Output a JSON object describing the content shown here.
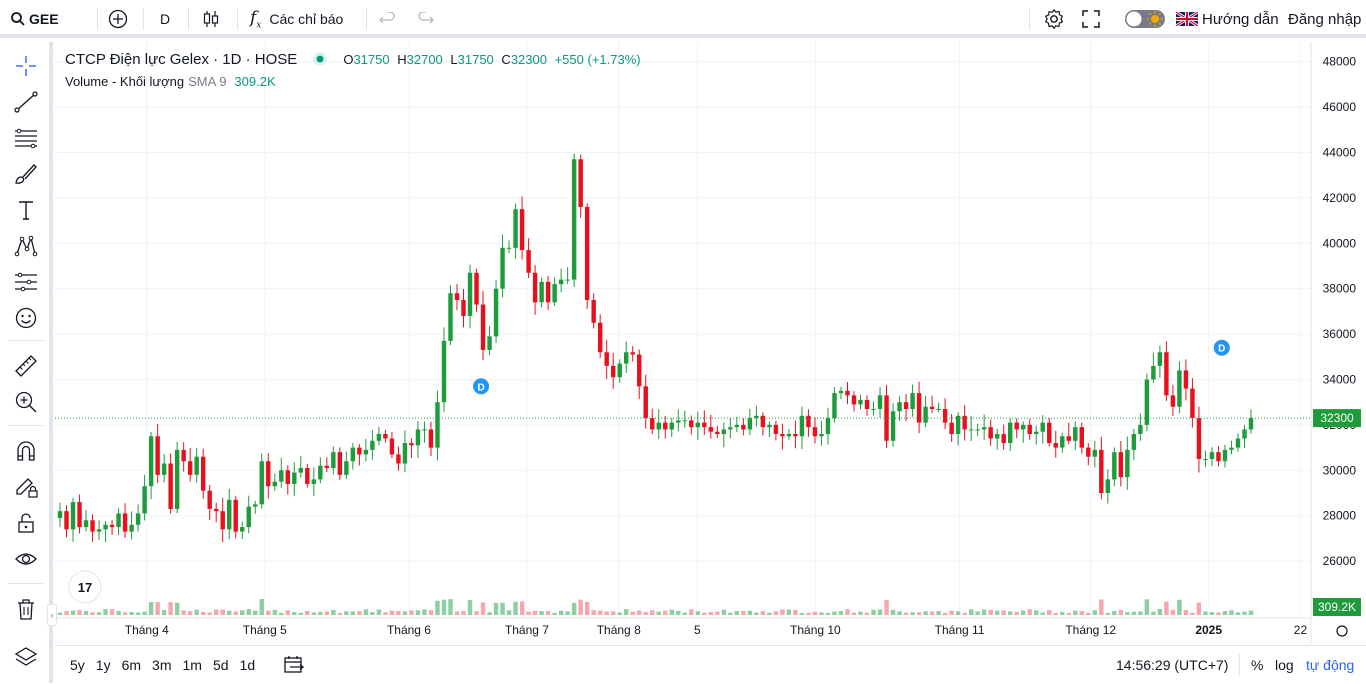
{
  "topbar": {
    "symbol": "GEE",
    "interval": "D",
    "indicators_label": "Các chỉ báo",
    "guide_label": "Hướng dẫn",
    "login_label": "Đăng nhập"
  },
  "legend": {
    "title": "CTCP Điện lực Gelex · 1D · HOSE",
    "open_label": "O",
    "open": "31750",
    "high_label": "H",
    "high": "32700",
    "low_label": "L",
    "low": "31750",
    "close_label": "C",
    "close": "32300",
    "change": "+550 (+1.73%)",
    "volume_label": "Volume - Khối lượng",
    "sma_label": "SMA 9",
    "volume_value": "309.2K"
  },
  "price_tag": "32300",
  "volume_tag": "309.2K",
  "ranges": [
    "5y",
    "1y",
    "6m",
    "3m",
    "1m",
    "5d",
    "1d"
  ],
  "bottombar": {
    "clock": "14:56:29 (UTC+7)",
    "percent": "%",
    "log": "log",
    "auto": "tự động"
  },
  "colors": {
    "up": "#089981",
    "down": "#f23645",
    "accent": "#2962ff",
    "up_bar": "#1e9c3c",
    "down_bar": "#e8101e"
  },
  "chart_data": {
    "type": "candlestick",
    "y_ticks": [
      26000,
      28000,
      30000,
      32000,
      34000,
      36000,
      38000,
      40000,
      42000,
      44000,
      46000,
      48000
    ],
    "ylim": [
      24200,
      48600
    ],
    "x_labels": [
      "Tháng 4",
      "Tháng 5",
      "Tháng 6",
      "Tháng 7",
      "Tháng 8",
      "5",
      "Tháng 10",
      "Tháng 11",
      "Tháng 12",
      "2025",
      "22"
    ],
    "x_label_positions": [
      0.07,
      0.16,
      0.27,
      0.36,
      0.43,
      0.49,
      0.58,
      0.69,
      0.79,
      0.88,
      0.95
    ],
    "dividend_marker": "D",
    "last_close": 32300,
    "closes": [
      28200,
      27400,
      28600,
      27500,
      27800,
      27300,
      27400,
      27600,
      27500,
      28100,
      27300,
      27600,
      28100,
      29300,
      31500,
      29800,
      30300,
      28300,
      30900,
      30400,
      29800,
      30600,
      29100,
      28300,
      28200,
      27400,
      28700,
      27300,
      27500,
      28400,
      28500,
      30400,
      29300,
      29500,
      30000,
      29400,
      29900,
      30100,
      29400,
      29600,
      30200,
      30100,
      30800,
      29800,
      30400,
      31000,
      30700,
      30900,
      31300,
      31600,
      31400,
      30700,
      30300,
      31200,
      31100,
      31800,
      31800,
      31000,
      33000,
      35700,
      37800,
      37500,
      36800,
      38700,
      37300,
      35300,
      35900,
      38000,
      39800,
      39800,
      41500,
      39700,
      38700,
      37400,
      38300,
      37400,
      38200,
      38400,
      38400,
      43700,
      41600,
      37500,
      36500,
      35200,
      34600,
      34100,
      34700,
      35200,
      35100,
      33700,
      32300,
      31800,
      32100,
      31800,
      32100,
      32200,
      32200,
      31900,
      32100,
      31900,
      31700,
      31600,
      31800,
      31900,
      32000,
      31800,
      32300,
      32400,
      31900,
      32000,
      31600,
      31500,
      31600,
      31500,
      32400,
      31900,
      31500,
      31600,
      32300,
      33400,
      33500,
      33300,
      32900,
      33100,
      32700,
      32700,
      33300,
      31300,
      32600,
      33000,
      32700,
      33400,
      32100,
      32800,
      32700,
      32700,
      32100,
      31600,
      32400,
      31800,
      31800,
      31800,
      31900,
      31400,
      31600,
      31200,
      32100,
      31800,
      32000,
      31600,
      31700,
      32100,
      31200,
      31000,
      31500,
      31300,
      31900,
      31000,
      30600,
      30900,
      29000,
      29600,
      30800,
      29700,
      30900,
      31600,
      32000,
      34000,
      34600,
      35200,
      33300,
      32800,
      34400,
      33600,
      32300,
      30500,
      30500,
      30800,
      30400,
      30900,
      31000,
      31400,
      31800,
      32300
    ],
    "volume_max_label": "309.2K"
  }
}
